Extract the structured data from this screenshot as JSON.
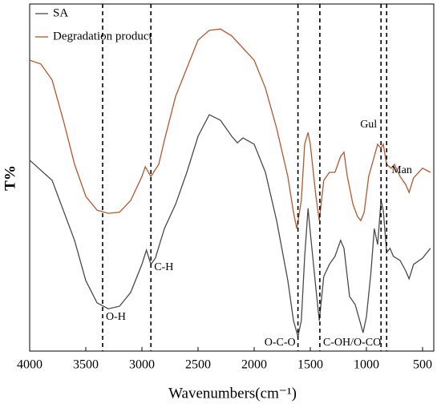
{
  "chart_data": {
    "type": "line",
    "xlabel": "Wavenumbers(cm⁻¹)",
    "ylabel": "T%",
    "xlim": [
      4000,
      400
    ],
    "ylim": [
      0,
      100
    ],
    "xticks": [
      4000,
      3500,
      3000,
      2500,
      2000,
      1500,
      1000,
      500
    ],
    "legend": "upper left",
    "series": [
      {
        "name": "SA",
        "color": "#4a4a4a",
        "x": [
          4000,
          3800,
          3600,
          3500,
          3400,
          3300,
          3200,
          3100,
          3000,
          2960,
          2920,
          2880,
          2800,
          2700,
          2600,
          2500,
          2400,
          2300,
          2200,
          2150,
          2100,
          2000,
          1900,
          1800,
          1700,
          1650,
          1610,
          1580,
          1550,
          1520,
          1500,
          1450,
          1420,
          1380,
          1330,
          1280,
          1230,
          1200,
          1150,
          1100,
          1060,
          1030,
          1000,
          960,
          930,
          900,
          870,
          850,
          820,
          790,
          760,
          700,
          650,
          620,
          580,
          500,
          430
        ],
        "values": [
          55.0,
          49.2,
          31.9,
          20.3,
          13.9,
          12.2,
          12.9,
          16.9,
          25.0,
          29.1,
          25.0,
          26.8,
          35.3,
          42.3,
          51.5,
          61.9,
          68.1,
          66.5,
          61.9,
          60.0,
          61.4,
          59.6,
          51.5,
          37.6,
          20.3,
          8.8,
          4.2,
          8.8,
          27.3,
          41.1,
          34.2,
          18.0,
          8.8,
          21.5,
          25.0,
          27.3,
          31.9,
          29.6,
          15.7,
          13.4,
          8.8,
          5.3,
          9.9,
          22.6,
          35.3,
          30.7,
          43.4,
          40.6,
          28.4,
          29.6,
          27.3,
          26.1,
          23.1,
          20.8,
          25.0,
          26.8,
          29.6
        ]
      },
      {
        "name": "Degradation product",
        "color": "#b5572e",
        "x": [
          4000,
          3900,
          3800,
          3700,
          3600,
          3500,
          3400,
          3300,
          3200,
          3100,
          3000,
          2970,
          2920,
          2850,
          2800,
          2700,
          2600,
          2500,
          2400,
          2300,
          2200,
          2100,
          2000,
          1900,
          1800,
          1700,
          1650,
          1620,
          1580,
          1550,
          1520,
          1500,
          1450,
          1420,
          1380,
          1330,
          1280,
          1230,
          1200,
          1170,
          1120,
          1080,
          1050,
          1020,
          980,
          930,
          900,
          870,
          850,
          820,
          780,
          750,
          700,
          650,
          620,
          580,
          500,
          430
        ],
        "values": [
          83.8,
          82.7,
          78.1,
          66.5,
          53.8,
          44.6,
          40.6,
          39.7,
          40.0,
          43.4,
          50.3,
          53.1,
          50.3,
          53.8,
          60.7,
          73.4,
          81.5,
          89.6,
          92.4,
          92.8,
          90.8,
          87.3,
          83.8,
          75.8,
          64.2,
          50.3,
          40.0,
          35.3,
          43.4,
          59.6,
          63.0,
          59.6,
          44.6,
          37.6,
          49.2,
          51.5,
          51.5,
          56.1,
          57.3,
          50.3,
          42.3,
          38.8,
          37.6,
          40.0,
          50.3,
          56.1,
          59.6,
          58.4,
          59.6,
          53.8,
          52.7,
          53.8,
          50.3,
          48.0,
          45.7,
          49.9,
          52.7,
          51.5
        ]
      }
    ],
    "markers": [
      {
        "x": 3350,
        "label": "O-H"
      },
      {
        "x": 2920,
        "label": "C-H"
      },
      {
        "x": 1610,
        "label": "O-C-O"
      },
      {
        "x": 1415,
        "label": "C-OH/O-CO"
      },
      {
        "x": 870,
        "label": "Gul"
      },
      {
        "x": 820,
        "label": "Man"
      }
    ]
  }
}
